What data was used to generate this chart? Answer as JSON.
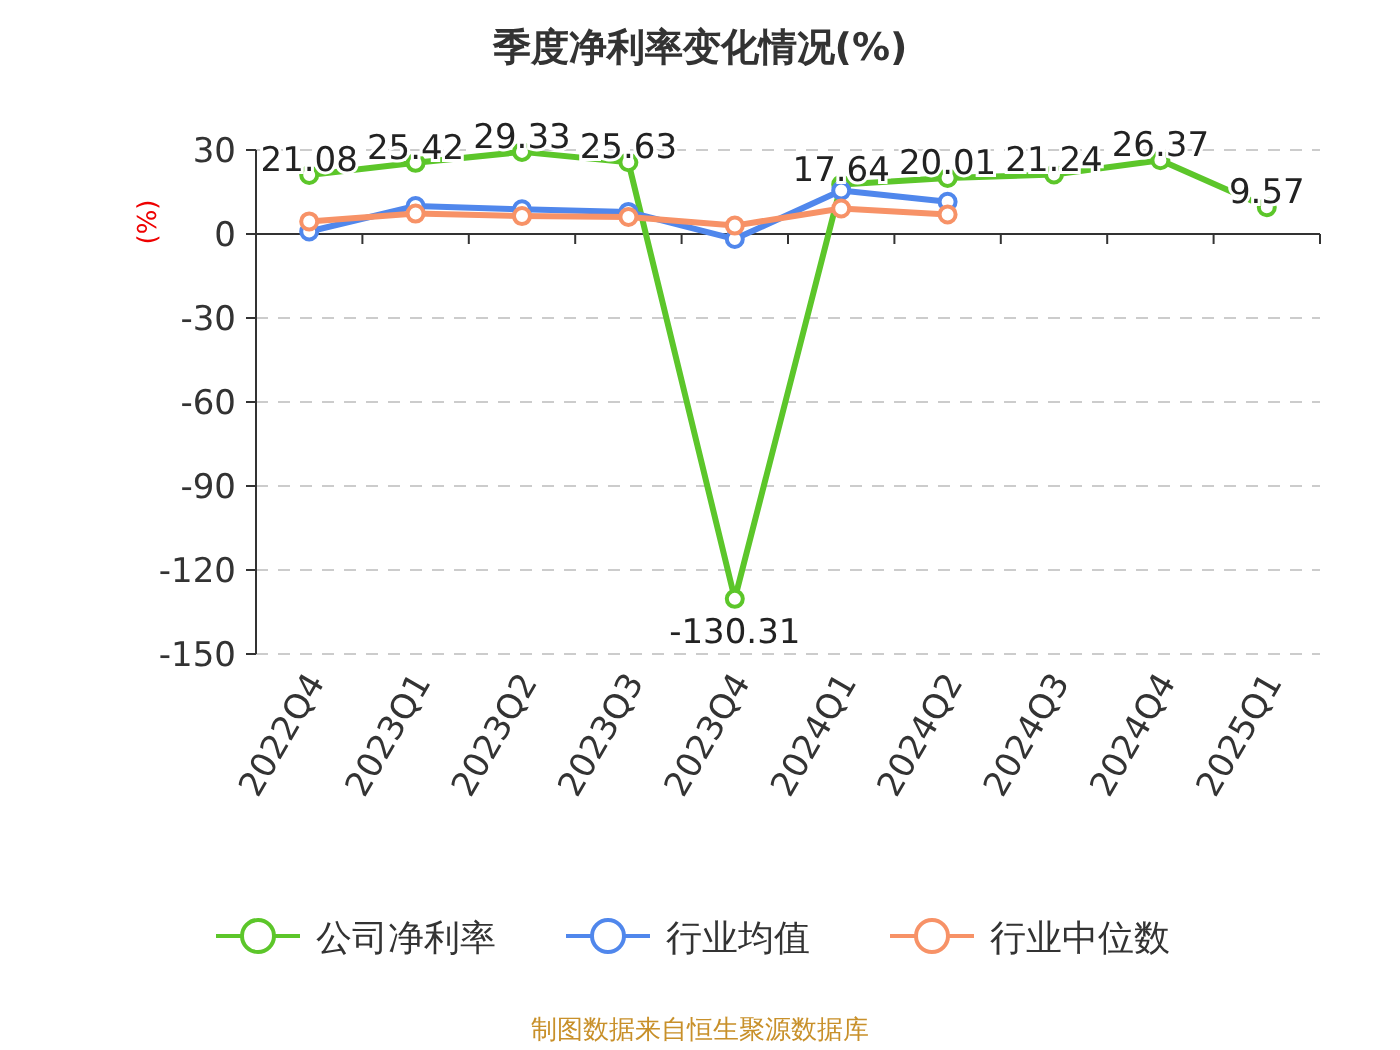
{
  "chart_data": {
    "type": "line",
    "title": "季度净利率变化情况(%)",
    "ylabel": "(%)",
    "categories": [
      "2022Q4",
      "2023Q1",
      "2023Q2",
      "2023Q3",
      "2023Q4",
      "2024Q1",
      "2024Q2",
      "2024Q3",
      "2024Q4",
      "2025Q1"
    ],
    "series": [
      {
        "name": "公司净利率",
        "color": "#5cc62a",
        "values": [
          21.08,
          25.42,
          29.33,
          25.63,
          -130.31,
          17.64,
          20.01,
          21.24,
          26.37,
          9.57
        ],
        "value_labels": [
          "21.08",
          "25.42",
          "29.33",
          "25.63",
          "-130.31",
          "17.64",
          "20.01",
          "21.24",
          "26.37",
          "9.57"
        ]
      },
      {
        "name": "行业均值",
        "color": "#5087ec",
        "values": [
          0.9,
          10,
          8.8,
          7.9,
          -1.8,
          15.5,
          11.5,
          null,
          null,
          null
        ]
      },
      {
        "name": "行业中位数",
        "color": "#f79267",
        "values": [
          4.5,
          7.3,
          6.4,
          6.1,
          3.0,
          9.1,
          7.0,
          null,
          null,
          null
        ]
      }
    ],
    "ylim": [
      -150,
      30
    ],
    "yticks": [
      -150,
      -120,
      -90,
      -60,
      -30,
      0,
      30
    ],
    "grid": "y",
    "legend": "bottom",
    "marker": "circle",
    "line_style": "solid",
    "annotations": [
      "制图数据来自恒生聚源数据库"
    ]
  }
}
